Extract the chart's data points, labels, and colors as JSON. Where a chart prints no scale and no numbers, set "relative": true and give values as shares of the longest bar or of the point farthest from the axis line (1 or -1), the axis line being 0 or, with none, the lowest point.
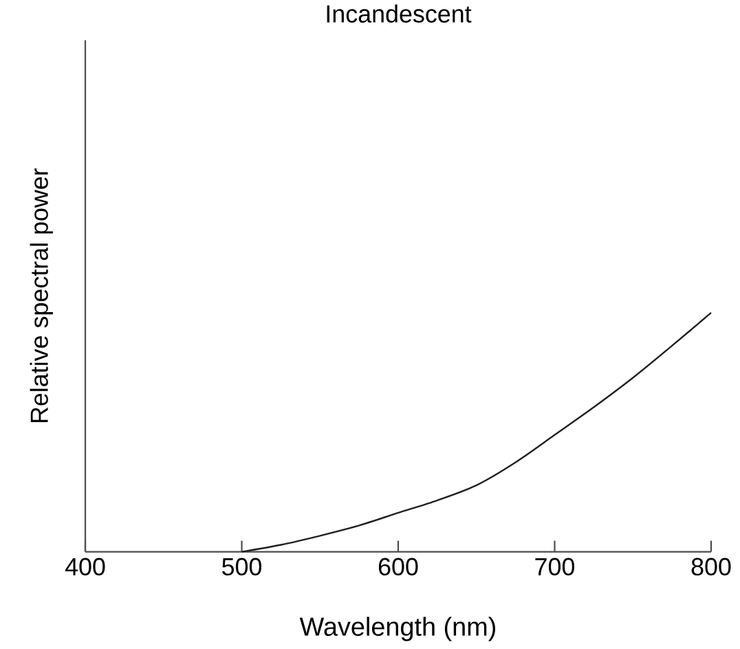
{
  "chart_data": {
    "type": "line",
    "title": "Incandescent",
    "xlabel": "Wavelength (nm)",
    "ylabel": "Relative spectral power",
    "relative": true,
    "color": "#231f20",
    "x": [
      500,
      525,
      550,
      575,
      600,
      625,
      650,
      675,
      700,
      725,
      750,
      775,
      800
    ],
    "values": [
      0,
      0.029,
      0.067,
      0.11,
      0.163,
      0.215,
      0.278,
      0.374,
      0.489,
      0.605,
      0.728,
      0.862,
      1
    ],
    "xlim": [
      400,
      800
    ],
    "xticks": [
      400,
      500,
      600,
      700,
      800
    ],
    "grid": false,
    "marker": "none",
    "line_style": "solid"
  }
}
